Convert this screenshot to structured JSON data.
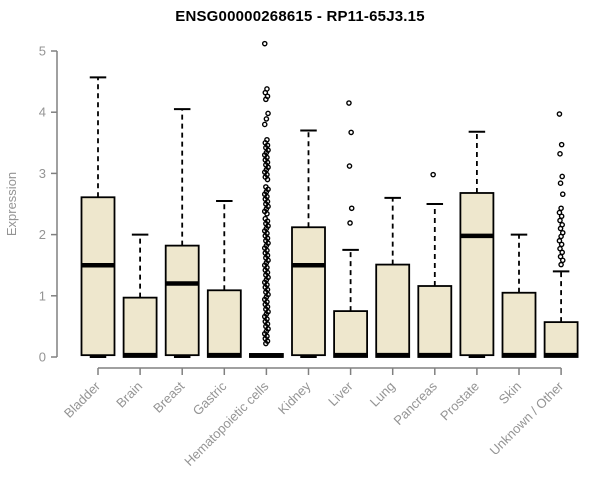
{
  "title": "ENSG00000268615 - RP11-65J3.15",
  "chart_data": {
    "type": "boxplot",
    "title": "ENSG00000268615 - RP11-65J3.15",
    "xlabel": "",
    "ylabel": "Expression",
    "ylim": [
      0,
      5
    ],
    "yticks": [
      0,
      1,
      2,
      3,
      4,
      5
    ],
    "grid": false,
    "legend": "none",
    "colors": {
      "box_fill": "#EEE7CD",
      "box_border": "#000000",
      "median": "#000000",
      "whisker": "#000000",
      "outlier": "#000000",
      "axis_line": "#808080",
      "axis_text": "#949494",
      "title_text": "#000000"
    },
    "categories": [
      "Bladder",
      "Brain",
      "Breast",
      "Gastric",
      "Hematopoietic cells",
      "Kidney",
      "Liver",
      "Lung",
      "Pancreas",
      "Prostate",
      "Skin",
      "Unknown / Other"
    ],
    "series": [
      {
        "name": "Bladder",
        "whisker_low": 0,
        "q1": 0.03,
        "median": 1.5,
        "q3": 2.61,
        "whisker_high": 4.57,
        "outliers": []
      },
      {
        "name": "Brain",
        "whisker_low": 0,
        "q1": 0.0,
        "median": 0.03,
        "q3": 0.97,
        "whisker_high": 2.0,
        "outliers": []
      },
      {
        "name": "Breast",
        "whisker_low": 0,
        "q1": 0.03,
        "median": 1.2,
        "q3": 1.82,
        "whisker_high": 4.05,
        "outliers": []
      },
      {
        "name": "Gastric",
        "whisker_low": 0,
        "q1": 0.0,
        "median": 0.03,
        "q3": 1.09,
        "whisker_high": 2.55,
        "outliers": []
      },
      {
        "name": "Hematopoietic cells",
        "whisker_low": 0,
        "q1": 0.0,
        "median": 0.025,
        "q3": 0.05,
        "whisker_high": 0.05,
        "outliers": [
          5.12,
          4.38,
          4.32,
          4.26,
          4.21,
          3.98,
          3.89,
          3.8,
          3.55,
          3.5,
          3.46,
          3.42,
          3.38,
          3.34,
          3.3,
          3.26,
          3.22,
          3.18,
          3.14,
          3.1,
          3.06,
          3.02,
          2.98,
          2.94,
          2.9,
          2.78,
          2.74,
          2.7,
          2.66,
          2.62,
          2.58,
          2.54,
          2.5,
          2.46,
          2.42,
          2.38,
          2.34,
          2.26,
          2.22,
          2.18,
          2.14,
          2.1,
          2.06,
          2.02,
          1.98,
          1.94,
          1.9,
          1.86,
          1.82,
          1.78,
          1.74,
          1.7,
          1.66,
          1.62,
          1.58,
          1.54,
          1.5,
          1.46,
          1.42,
          1.38,
          1.34,
          1.3,
          1.26,
          1.22,
          1.18,
          1.14,
          1.1,
          1.06,
          1.02,
          0.98,
          0.94,
          0.9,
          0.86,
          0.82,
          0.78,
          0.74,
          0.7,
          0.66,
          0.62,
          0.58,
          0.54,
          0.5,
          0.46,
          0.42,
          0.38,
          0.34,
          0.3,
          0.26,
          0.22
        ]
      },
      {
        "name": "Kidney",
        "whisker_low": 0,
        "q1": 0.03,
        "median": 1.5,
        "q3": 2.12,
        "whisker_high": 3.7,
        "outliers": []
      },
      {
        "name": "Liver",
        "whisker_low": 0,
        "q1": 0.0,
        "median": 0.03,
        "q3": 0.75,
        "whisker_high": 1.75,
        "outliers": [
          4.15,
          3.67,
          3.12,
          2.43,
          2.19
        ]
      },
      {
        "name": "Lung",
        "whisker_low": 0,
        "q1": 0.0,
        "median": 0.03,
        "q3": 1.51,
        "whisker_high": 2.6,
        "outliers": []
      },
      {
        "name": "Pancreas",
        "whisker_low": 0,
        "q1": 0.0,
        "median": 0.03,
        "q3": 1.16,
        "whisker_high": 2.5,
        "outliers": [
          2.98
        ]
      },
      {
        "name": "Prostate",
        "whisker_low": 0,
        "q1": 0.03,
        "median": 1.98,
        "q3": 2.68,
        "whisker_high": 3.68,
        "outliers": []
      },
      {
        "name": "Skin",
        "whisker_low": 0,
        "q1": 0.0,
        "median": 0.03,
        "q3": 1.05,
        "whisker_high": 2.0,
        "outliers": []
      },
      {
        "name": "Unknown / Other",
        "whisker_low": 0,
        "q1": 0.0,
        "median": 0.03,
        "q3": 0.57,
        "whisker_high": 1.4,
        "outliers": [
          3.97,
          3.47,
          3.32,
          2.95,
          2.84,
          2.66,
          2.43,
          2.36,
          2.3,
          2.23,
          2.16,
          2.1,
          2.03,
          1.97,
          1.9,
          1.84,
          1.77,
          1.71,
          1.64,
          1.58,
          1.51
        ]
      }
    ]
  }
}
